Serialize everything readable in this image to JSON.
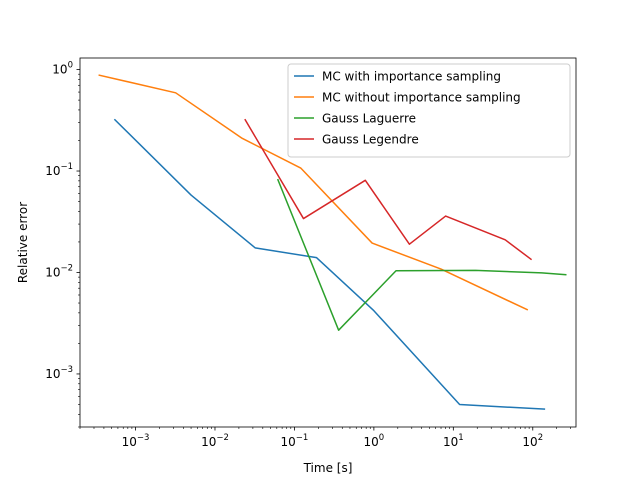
{
  "chart_data": {
    "type": "line",
    "title": "",
    "xlabel": "Time [s]",
    "ylabel": "Relative error",
    "xscale": "log",
    "yscale": "log",
    "xlim": [
      0.0002,
      350
    ],
    "ylim": [
      0.0003,
      1.3
    ],
    "grid": false,
    "legend_position": "top-right",
    "x_ticks": [
      {
        "value": 0.001,
        "base": "10",
        "exp": "−3"
      },
      {
        "value": 0.01,
        "base": "10",
        "exp": "−2"
      },
      {
        "value": 0.1,
        "base": "10",
        "exp": "−1"
      },
      {
        "value": 1,
        "base": "10",
        "exp": "0"
      },
      {
        "value": 10,
        "base": "10",
        "exp": "1"
      },
      {
        "value": 100,
        "base": "10",
        "exp": "2"
      }
    ],
    "y_ticks": [
      {
        "value": 0.001,
        "base": "10",
        "exp": "−3"
      },
      {
        "value": 0.01,
        "base": "10",
        "exp": "−2"
      },
      {
        "value": 0.1,
        "base": "10",
        "exp": "−1"
      },
      {
        "value": 1,
        "base": "10",
        "exp": "0"
      }
    ],
    "series": [
      {
        "name": "MC with importance sampling",
        "color": "#1f77b4",
        "x": [
          0.00055,
          0.005,
          0.032,
          0.19,
          1.0,
          12,
          140
        ],
        "y": [
          0.32,
          0.058,
          0.0175,
          0.014,
          0.0042,
          0.0005,
          0.00045
        ]
      },
      {
        "name": "MC without importance sampling",
        "color": "#ff7f0e",
        "x": [
          0.00035,
          0.0032,
          0.022,
          0.12,
          0.95,
          7,
          85
        ],
        "y": [
          0.88,
          0.59,
          0.21,
          0.107,
          0.0195,
          0.0108,
          0.0043
        ]
      },
      {
        "name": "Gauss Laguerre",
        "color": "#2ca02c",
        "x": [
          0.062,
          0.36,
          1.9,
          19,
          130,
          260
        ],
        "y": [
          0.082,
          0.0027,
          0.0104,
          0.0105,
          0.0099,
          0.0095
        ]
      },
      {
        "name": "Gauss Legendre",
        "color": "#d62728",
        "x": [
          0.024,
          0.13,
          0.78,
          2.8,
          8,
          45,
          95
        ],
        "y": [
          0.32,
          0.034,
          0.081,
          0.019,
          0.036,
          0.021,
          0.0135
        ]
      }
    ]
  }
}
